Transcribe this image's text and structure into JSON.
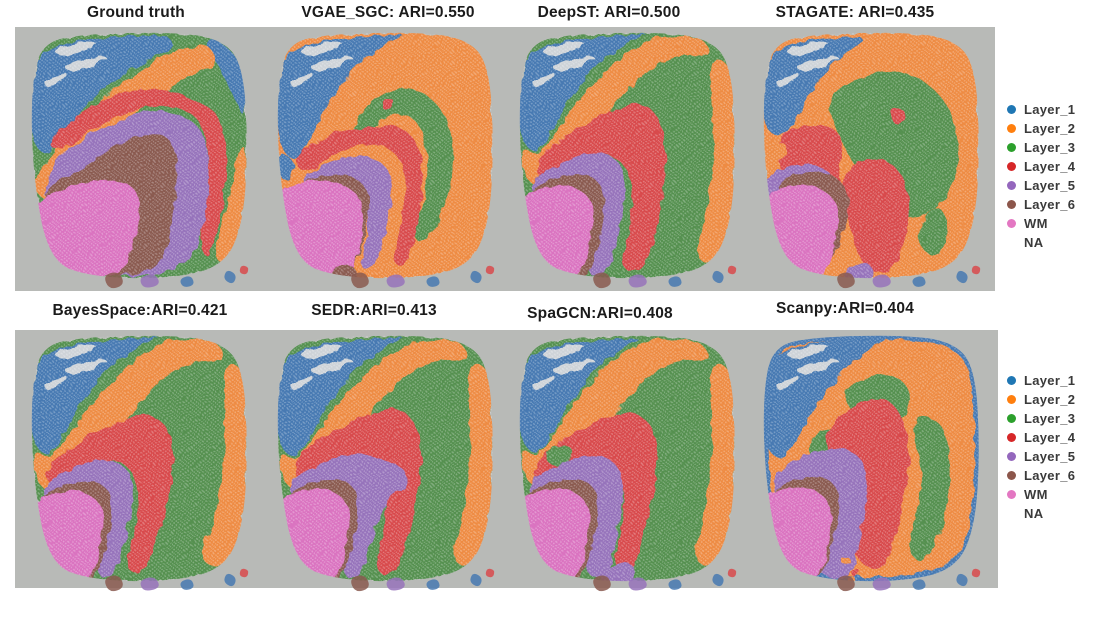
{
  "figure": {
    "background": "#ffffff",
    "strip_color": "#b8bab7",
    "rows": [
      {
        "panels": [
          {
            "id": "gt",
            "title": "Ground truth",
            "method": "Ground truth",
            "ari": null
          },
          {
            "id": "vgae",
            "title": "VGAE_SGC: ARI=0.550",
            "method": "VGAE_SGC",
            "ari": 0.55
          },
          {
            "id": "deepst",
            "title": "DeepST: ARI=0.500",
            "method": "DeepST",
            "ari": 0.5
          },
          {
            "id": "stagate",
            "title": "STAGATE: ARI=0.435",
            "method": "STAGATE",
            "ari": 0.435
          }
        ]
      },
      {
        "panels": [
          {
            "id": "bayes",
            "title": "BayesSpace:ARI=0.421",
            "method": "BayesSpace",
            "ari": 0.421
          },
          {
            "id": "sedr",
            "title": "SEDR:ARI=0.413",
            "method": "SEDR",
            "ari": 0.413
          },
          {
            "id": "spagcn",
            "title": "SpaGCN:ARI=0.408",
            "method": "SpaGCN",
            "ari": 0.408
          },
          {
            "id": "scanpy",
            "title": "Scanpy:ARI=0.404",
            "method": "Scanpy",
            "ari": 0.404
          }
        ]
      }
    ],
    "legend": {
      "entries": [
        {
          "label": "Layer_1",
          "color": "#1f77b4"
        },
        {
          "label": "Layer_2",
          "color": "#ff7f0e"
        },
        {
          "label": "Layer_3",
          "color": "#2ca02c"
        },
        {
          "label": "Layer_4",
          "color": "#d62728"
        },
        {
          "label": "Layer_5",
          "color": "#9467bd"
        },
        {
          "label": "Layer_6",
          "color": "#8c564b"
        },
        {
          "label": "WM",
          "color": "#e377c2"
        },
        {
          "label": "NA",
          "color": null
        }
      ]
    }
  },
  "chart_data": {
    "type": "scatter",
    "subtype": "spatial-cluster-maps",
    "description": "Eight spatial transcriptomics clustering maps of the same cortical tissue section; spots colored by assigned layer.",
    "panels": [
      {
        "method": "Ground truth",
        "ari": null,
        "title": "Ground truth"
      },
      {
        "method": "VGAE_SGC",
        "ari": 0.55,
        "title": "VGAE_SGC: ARI=0.550"
      },
      {
        "method": "DeepST",
        "ari": 0.5,
        "title": "DeepST: ARI=0.500"
      },
      {
        "method": "STAGATE",
        "ari": 0.435,
        "title": "STAGATE: ARI=0.435"
      },
      {
        "method": "BayesSpace",
        "ari": 0.421,
        "title": "BayesSpace:ARI=0.421"
      },
      {
        "method": "SEDR",
        "ari": 0.413,
        "title": "SEDR:ARI=0.413"
      },
      {
        "method": "SpaGCN",
        "ari": 0.408,
        "title": "SpaGCN:ARI=0.408"
      },
      {
        "method": "Scanpy",
        "ari": 0.404,
        "title": "Scanpy:ARI=0.404"
      }
    ],
    "classes": [
      {
        "label": "Layer_1",
        "color": "#1f77b4"
      },
      {
        "label": "Layer_2",
        "color": "#ff7f0e"
      },
      {
        "label": "Layer_3",
        "color": "#2ca02c"
      },
      {
        "label": "Layer_4",
        "color": "#d62728"
      },
      {
        "label": "Layer_5",
        "color": "#9467bd"
      },
      {
        "label": "Layer_6",
        "color": "#8c564b"
      },
      {
        "label": "WM",
        "color": "#e377c2"
      },
      {
        "label": "NA",
        "color": null
      }
    ],
    "legend_position": "right",
    "metric": "ARI"
  }
}
